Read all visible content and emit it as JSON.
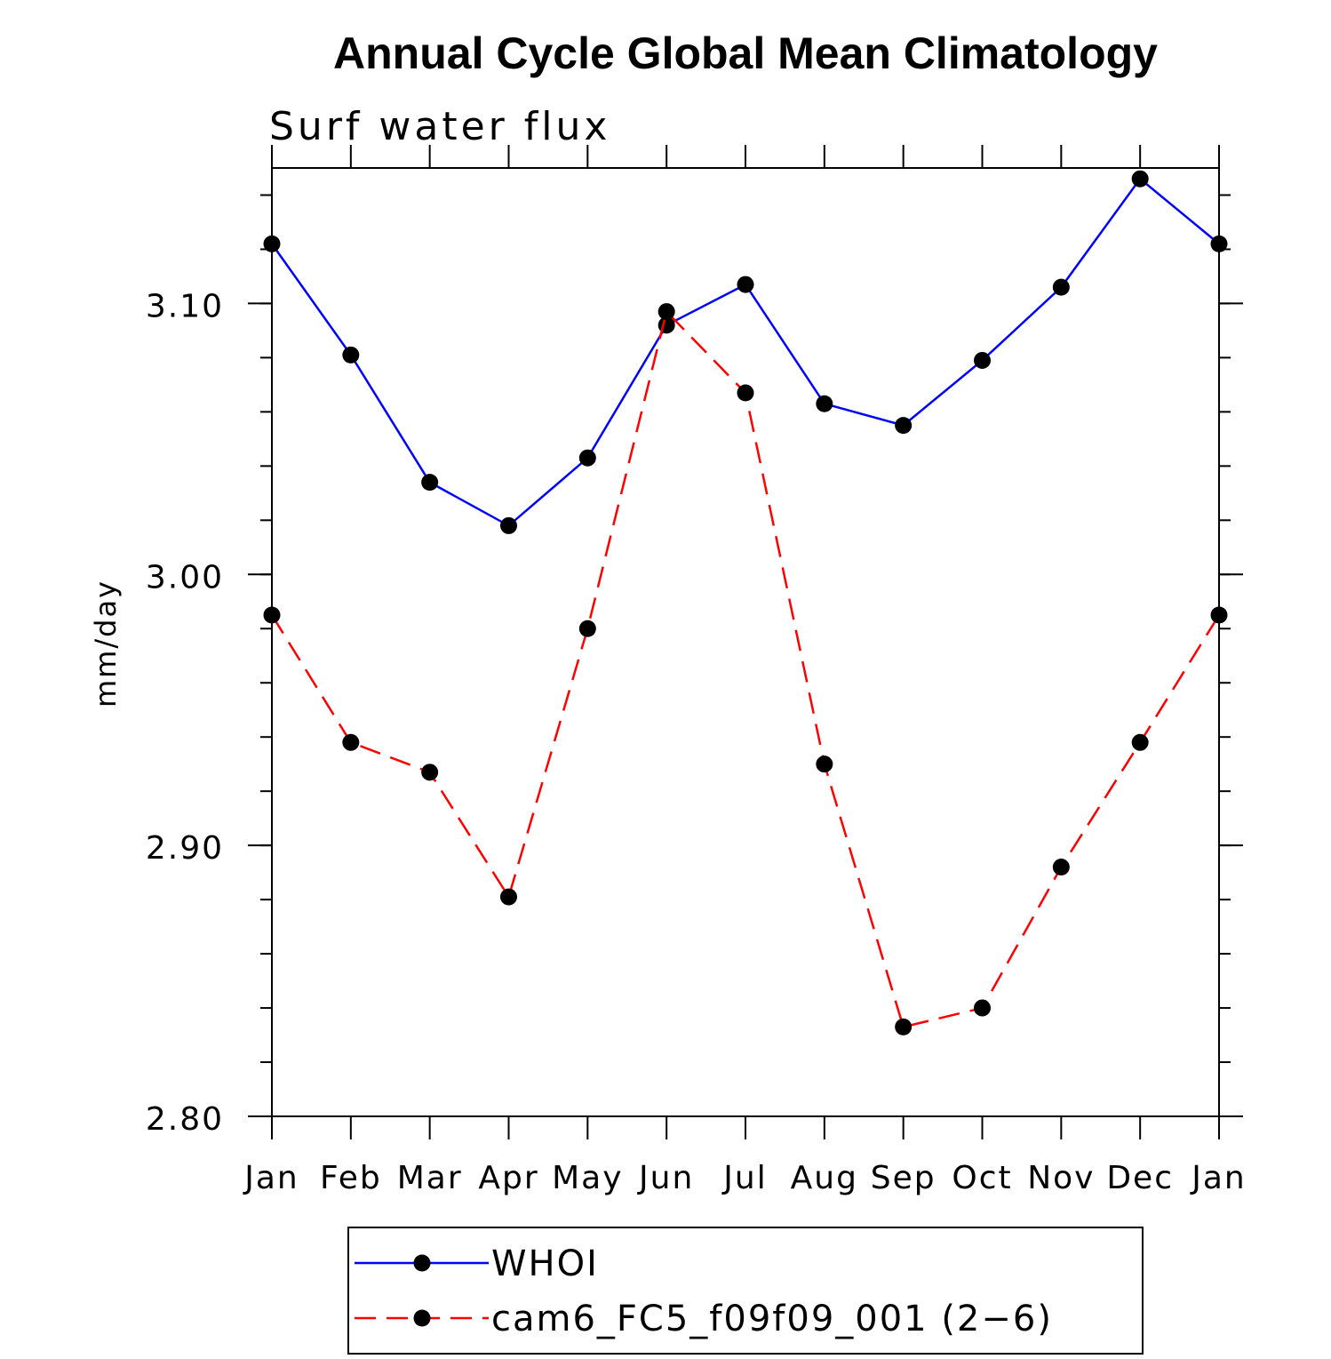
{
  "chart_data": {
    "type": "line",
    "title": "Annual Cycle Global Mean Climatology",
    "subtitle": "Surf water flux",
    "xlabel": "",
    "ylabel": "mm/day",
    "categories": [
      "Jan",
      "Feb",
      "Mar",
      "Apr",
      "May",
      "Jun",
      "Jul",
      "Aug",
      "Sep",
      "Oct",
      "Nov",
      "Dec",
      "Jan"
    ],
    "ylim": [
      2.8,
      3.15
    ],
    "yticks": [
      {
        "value": 2.8,
        "label": "2.80"
      },
      {
        "value": 2.9,
        "label": "2.90"
      },
      {
        "value": 3.0,
        "label": "3.00"
      },
      {
        "value": 3.1,
        "label": "3.10"
      }
    ],
    "y_minor_step": 0.02,
    "grid": false,
    "legend_position": "bottom",
    "series": [
      {
        "name": "WHOI",
        "color": "#0000ff",
        "line_style": "solid",
        "marker": "filled-circle",
        "values": [
          3.122,
          3.081,
          3.034,
          3.018,
          3.043,
          3.092,
          3.107,
          3.063,
          3.055,
          3.079,
          3.106,
          3.146,
          3.122
        ]
      },
      {
        "name": "cam6_FC5_f09f09_001 (2−6)",
        "color": "#ff0000",
        "line_style": "dashed",
        "marker": "filled-circle",
        "values": [
          2.985,
          2.938,
          2.927,
          2.881,
          2.98,
          3.097,
          3.067,
          2.93,
          2.833,
          2.84,
          2.892,
          2.938,
          2.985
        ]
      }
    ]
  }
}
